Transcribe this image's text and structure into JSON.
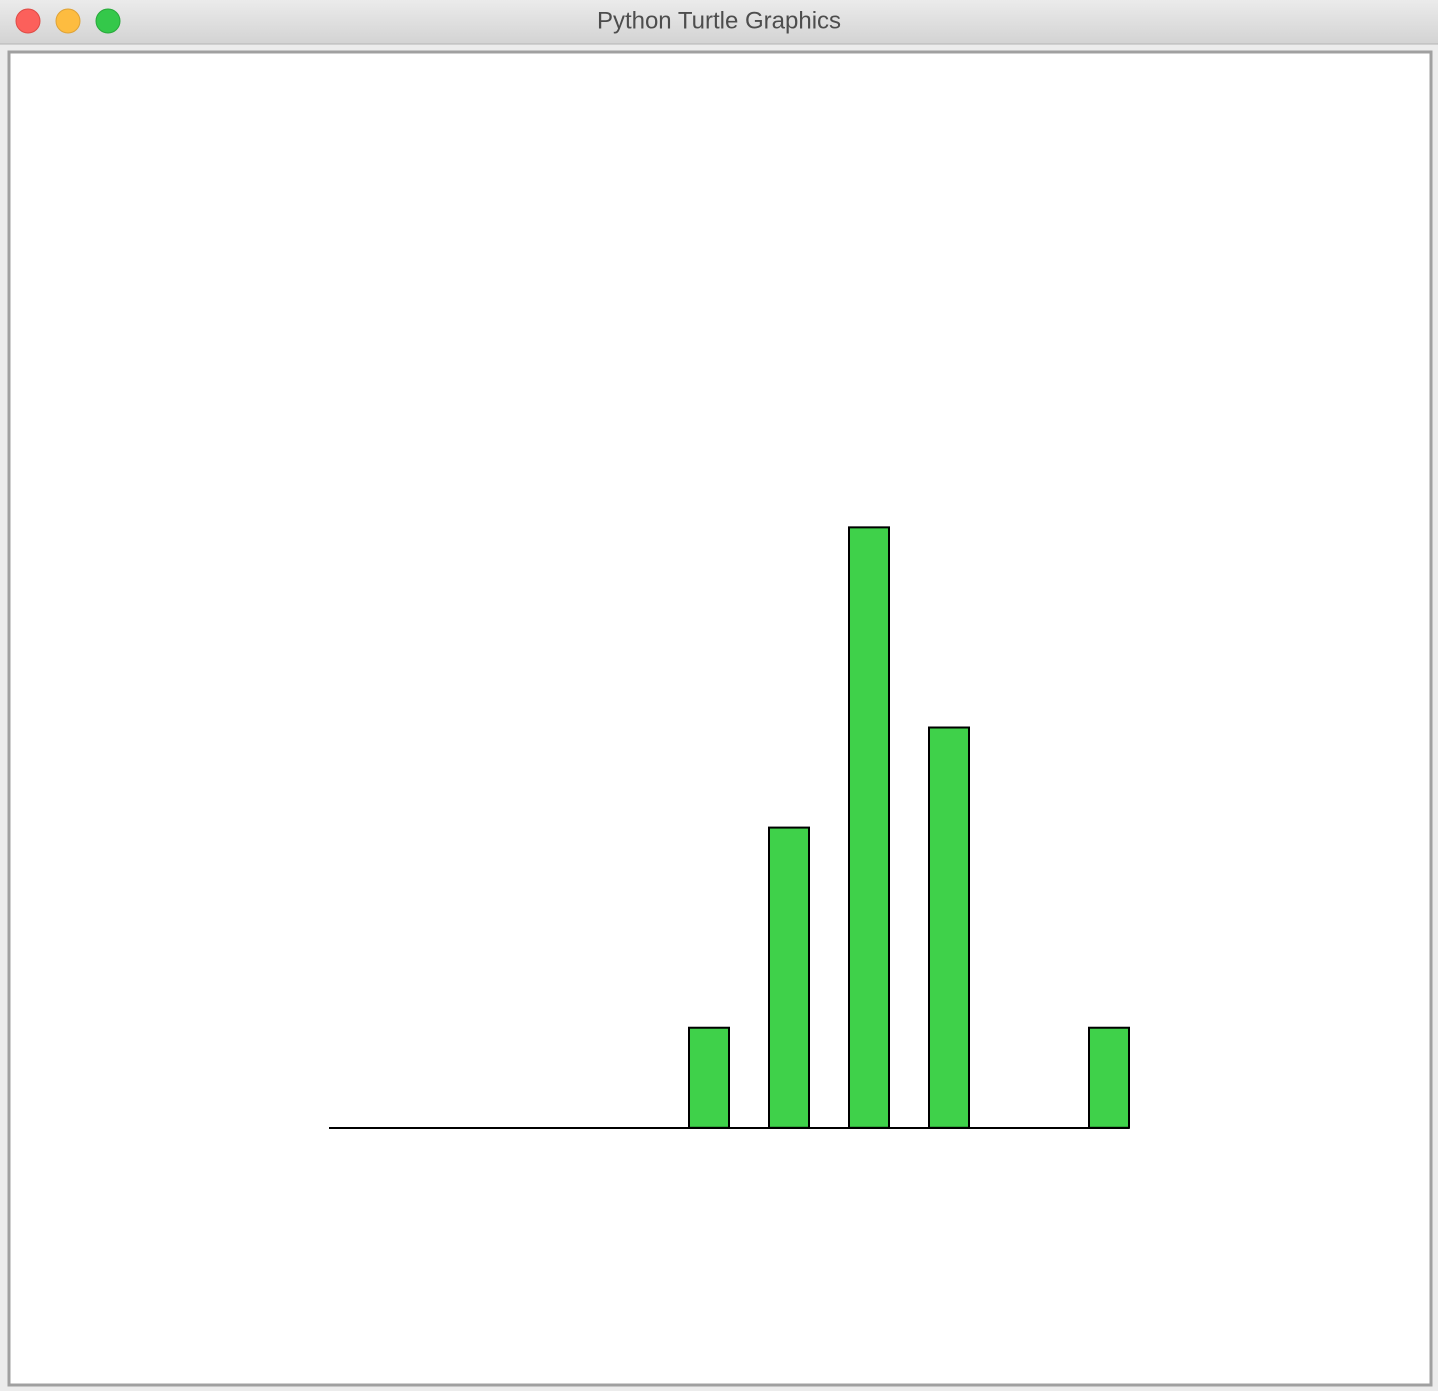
{
  "window": {
    "title": "Python Turtle Graphics"
  },
  "chart_data": {
    "type": "bar",
    "categories": [
      null,
      null,
      null,
      null,
      null,
      null,
      null,
      null,
      null,
      null
    ],
    "values": [
      0,
      0,
      0,
      0,
      1,
      3,
      6,
      4,
      0,
      1
    ],
    "color": "#3fd14a",
    "ylim": [
      -2.55,
      10.73
    ]
  }
}
